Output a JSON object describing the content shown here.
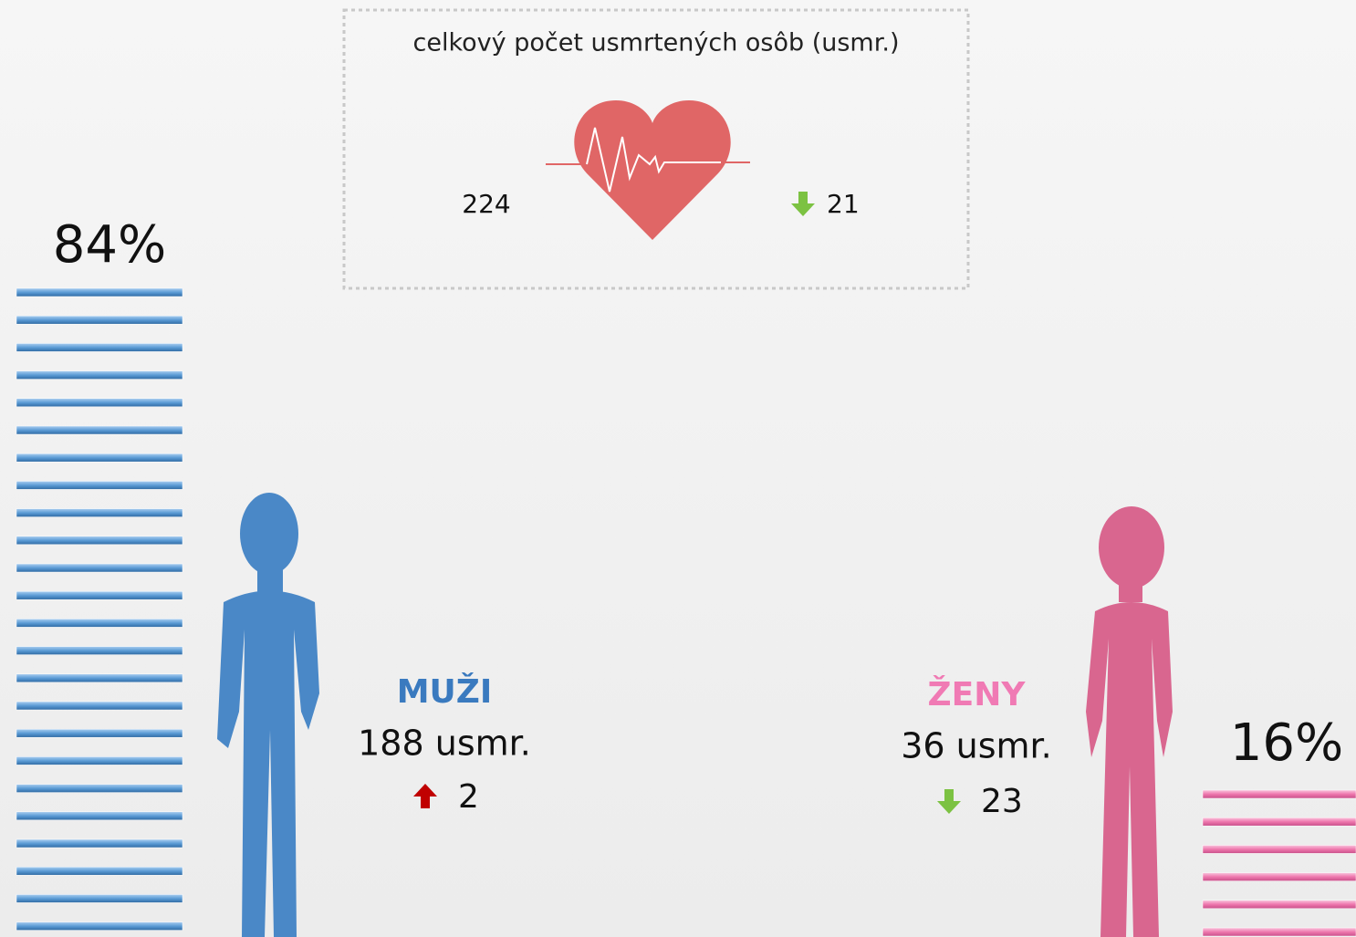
{
  "total": {
    "title": "celkový počet usmrtených osôb (usmr.)",
    "value": "224",
    "change": "21",
    "trend": "down"
  },
  "men": {
    "label": "MUŽI",
    "count": "188 usmr.",
    "change": "2",
    "trend": "up",
    "share": "84%",
    "color": "#3a7abf"
  },
  "women": {
    "label": "ŽENY",
    "count": "36 usmr.",
    "change": "23",
    "trend": "down",
    "share": "16%",
    "color": "#f07ab4"
  }
}
